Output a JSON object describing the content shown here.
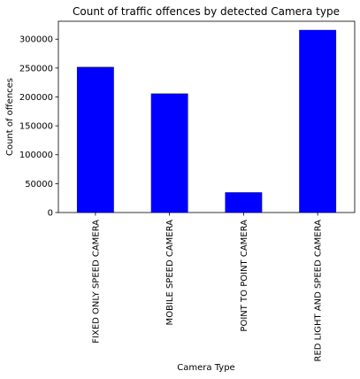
{
  "chart_data": {
    "type": "bar",
    "title": "Count of traffic offences by detected Camera type",
    "xlabel": "Camera Type",
    "ylabel": "Count of offences",
    "categories": [
      "FIXED ONLY SPEED CAMERA",
      "MOBILE SPEED CAMERA",
      "POINT TO POINT CAMERA",
      "RED LIGHT AND SPEED CAMERA"
    ],
    "values": [
      252000,
      206000,
      35000,
      316000
    ],
    "yticks": [
      0,
      50000,
      100000,
      150000,
      200000,
      250000,
      300000
    ],
    "ylim": [
      0,
      331000
    ],
    "bar_color": "#0000ff",
    "grid": false,
    "legend": "none"
  }
}
